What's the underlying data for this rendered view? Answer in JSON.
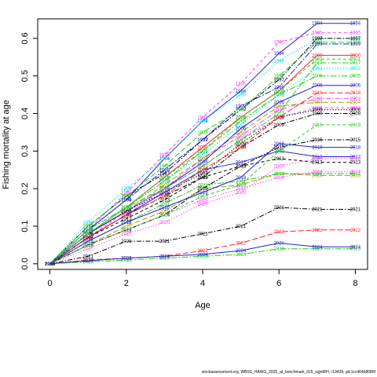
{
  "chart_data": {
    "type": "line",
    "title": "",
    "xlabel": "Age",
    "ylabel": "Fishing mortality at age",
    "xlim": [
      -0.32,
      8.32
    ],
    "ylim": [
      -0.015,
      0.652
    ],
    "xticks": [
      "0",
      "2",
      "4",
      "6",
      "8"
    ],
    "yticks": [
      "0.0",
      "0.1",
      "0.2",
      "0.3",
      "0.4",
      "0.5",
      "0.6"
    ],
    "x": [
      0,
      1,
      2,
      3,
      4,
      5,
      6,
      7,
      8
    ],
    "series": [
      {
        "name": "1994",
        "color": "#2020d0",
        "values": [
          0,
          0.09,
          0.17,
          0.28,
          0.38,
          0.46,
          0.56,
          0.64,
          0.64
        ]
      },
      {
        "name": "1995",
        "color": "#ff40ff",
        "values": [
          0,
          0.09,
          0.19,
          0.29,
          0.39,
          0.48,
          0.59,
          0.615,
          0.615
        ]
      },
      {
        "name": "1996",
        "color": "#00e0e0",
        "values": [
          0,
          0.11,
          0.2,
          0.28,
          0.38,
          0.45,
          0.54,
          0.6,
          0.6
        ]
      },
      {
        "name": "1997",
        "color": "#000000",
        "values": [
          0,
          0.1,
          0.18,
          0.24,
          0.33,
          0.41,
          0.49,
          0.6,
          0.6
        ]
      },
      {
        "name": "1998",
        "color": "#22cc22",
        "values": [
          0,
          0.1,
          0.18,
          0.26,
          0.35,
          0.41,
          0.5,
          0.59,
          0.59
        ]
      },
      {
        "name": "1999",
        "color": "#2020d0",
        "values": [
          0,
          0.09,
          0.17,
          0.25,
          0.33,
          0.42,
          0.47,
          0.585,
          0.585
        ]
      },
      {
        "name": "2000",
        "color": "#ff2020",
        "values": [
          0,
          0.08,
          0.15,
          0.23,
          0.31,
          0.39,
          0.46,
          0.555,
          0.555
        ]
      },
      {
        "name": "2001",
        "color": "#22cc22",
        "values": [
          0,
          0.08,
          0.15,
          0.23,
          0.3,
          0.39,
          0.46,
          0.545,
          0.545
        ]
      },
      {
        "name": "2002",
        "color": "#00e0e0",
        "values": [
          0,
          0.09,
          0.15,
          0.22,
          0.29,
          0.37,
          0.45,
          0.52,
          0.52
        ]
      },
      {
        "name": "2003",
        "color": "#ff40ff",
        "values": [
          0,
          0.07,
          0.13,
          0.2,
          0.28,
          0.34,
          0.41,
          0.44,
          0.44
        ]
      },
      {
        "name": "2004",
        "color": "#a0a000",
        "values": [
          0,
          0.08,
          0.14,
          0.21,
          0.28,
          0.35,
          0.42,
          0.43,
          0.43
        ]
      },
      {
        "name": "2005",
        "color": "#22cc22",
        "values": [
          0,
          0.09,
          0.15,
          0.22,
          0.3,
          0.38,
          0.45,
          0.5,
          0.5
        ]
      },
      {
        "name": "2006",
        "color": "#2020d0",
        "values": [
          0,
          0.08,
          0.14,
          0.2,
          0.27,
          0.36,
          0.43,
          0.475,
          0.475
        ]
      },
      {
        "name": "2007",
        "color": "#ff40ff",
        "values": [
          0,
          0.07,
          0.14,
          0.2,
          0.26,
          0.33,
          0.39,
          0.415,
          0.415
        ]
      },
      {
        "name": "2008",
        "color": "#000000",
        "values": [
          0,
          0.08,
          0.14,
          0.19,
          0.24,
          0.32,
          0.39,
          0.41,
          0.41
        ]
      },
      {
        "name": "2009",
        "color": "#000000",
        "values": [
          0,
          0.07,
          0.13,
          0.18,
          0.23,
          0.31,
          0.37,
          0.4,
          0.4
        ]
      },
      {
        "name": "2010",
        "color": "#a0a000",
        "values": [
          0,
          0.05,
          0.1,
          0.14,
          0.2,
          0.21,
          0.24,
          0.235,
          0.235
        ]
      },
      {
        "name": "2011",
        "color": "#22cc22",
        "values": [
          0,
          0.06,
          0.11,
          0.16,
          0.21,
          0.22,
          0.24,
          0.24,
          0.24
        ]
      },
      {
        "name": "2012",
        "color": "#2020d0",
        "values": [
          0,
          0.07,
          0.13,
          0.19,
          0.25,
          0.27,
          0.3,
          0.285,
          0.285
        ]
      },
      {
        "name": "2013",
        "color": "#000000",
        "values": [
          0,
          0.07,
          0.12,
          0.17,
          0.23,
          0.26,
          0.28,
          0.27,
          0.27
        ]
      },
      {
        "name": "2014",
        "color": "#ff40ff",
        "values": [
          0,
          0.05,
          0.09,
          0.13,
          0.17,
          0.2,
          0.23,
          0.245,
          0.245
        ]
      },
      {
        "name": "2015",
        "color": "#000000",
        "values": [
          0,
          0.05,
          0.09,
          0.13,
          0.2,
          0.26,
          0.31,
          0.33,
          0.33
        ]
      },
      {
        "name": "2016",
        "color": "#ff2020",
        "values": [
          0,
          0.07,
          0.13,
          0.18,
          0.25,
          0.31,
          0.39,
          0.455,
          0.455
        ]
      },
      {
        "name": "2017",
        "color": "#22cc22",
        "values": [
          0,
          0.08,
          0.15,
          0.2,
          0.26,
          0.33,
          0.4,
          0.535,
          0.535
        ]
      },
      {
        "name": "2018",
        "color": "#2020d0",
        "values": [
          0,
          0.06,
          0.11,
          0.15,
          0.19,
          0.23,
          0.32,
          0.31,
          0.31
        ]
      },
      {
        "name": "2019",
        "color": "#22cc22",
        "values": [
          0,
          0.05,
          0.09,
          0.13,
          0.18,
          0.21,
          0.3,
          0.37,
          0.37
        ]
      },
      {
        "name": "2020",
        "color": "#ff40ff",
        "values": [
          0,
          0.04,
          0.08,
          0.11,
          0.16,
          0.19,
          0.26,
          0.28,
          0.28
        ]
      },
      {
        "name": "2021",
        "color": "#000000",
        "values": [
          0,
          0.02,
          0.06,
          0.06,
          0.08,
          0.1,
          0.15,
          0.145,
          0.145
        ]
      },
      {
        "name": "2022",
        "color": "#ff2020",
        "values": [
          0,
          0.01,
          0.015,
          0.02,
          0.035,
          0.055,
          0.085,
          0.09,
          0.09
        ]
      },
      {
        "name": "2023",
        "color": "#22cc22",
        "values": [
          0,
          0.005,
          0.01,
          0.015,
          0.02,
          0.025,
          0.04,
          0.04,
          0.04
        ]
      },
      {
        "name": "2024",
        "color": "#2020d0",
        "values": [
          0,
          0.008,
          0.015,
          0.02,
          0.025,
          0.035,
          0.055,
          0.045,
          0.045
        ]
      }
    ]
  },
  "footer": "stockassessment.org, WBSS_HAWG_2025_at_benchmark_lt15_signlRH, r19439, git:1cc464b8086f"
}
